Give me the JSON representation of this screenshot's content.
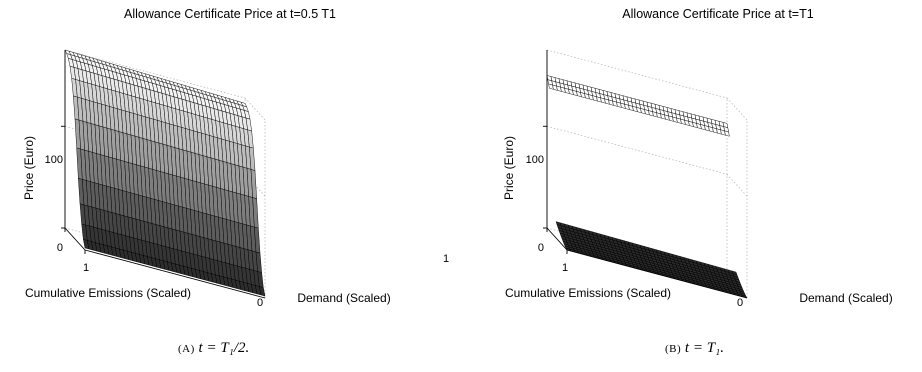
{
  "panels": [
    {
      "caption_tag": "(A)",
      "caption_math": "t = T₁/2."
    },
    {
      "caption_tag": "(B)",
      "caption_math": "t = T₁."
    }
  ],
  "chart_data": [
    {
      "type": "surface",
      "title": "Allowance Certificate Price at t=0.5 T1",
      "xlabel": "Demand (Scaled)",
      "ylabel": "Cumulative Emissions (Scaled)",
      "zlabel": "Price (Euro)",
      "x_ticks": [
        "0",
        "1"
      ],
      "y_ticks": [
        "1"
      ],
      "z_ticks": [
        "0",
        "100"
      ],
      "xlim": [
        0,
        1
      ],
      "ylim": [
        0,
        1
      ],
      "zlim": [
        0,
        175
      ],
      "grid": true,
      "x_count": 46,
      "y_count": 13,
      "profile_over_emissions": {
        "emissions": [
          0,
          0.1,
          0.2,
          0.3,
          0.4,
          0.5,
          0.6,
          0.7,
          0.8,
          0.9,
          1.0
        ],
        "price": [
          2,
          10,
          28,
          52,
          86,
          118,
          143,
          160,
          169,
          173,
          175
        ]
      },
      "demand_scaling": {
        "demand": [
          0,
          1
        ],
        "factor": [
          1.0,
          0.97
        ]
      }
    },
    {
      "type": "surface",
      "title": "Allowance Certificate Price at t=T1",
      "xlabel": "Demand (Scaled)",
      "ylabel": "Cumulative Emissions (Scaled)",
      "zlabel": "Price (Euro)",
      "x_ticks": [
        "0"
      ],
      "y_ticks": [
        "1"
      ],
      "z_ticks": [
        "0",
        "100"
      ],
      "xlim": [
        0,
        1
      ],
      "ylim": [
        0,
        1
      ],
      "zlim": [
        0,
        175
      ],
      "grid": true,
      "x_count": 46,
      "y_count": 13,
      "profile_over_emissions": {
        "emissions": [
          0,
          0.1,
          0.2,
          0.3,
          0.4,
          0.5,
          0.6,
          0.7,
          0.8,
          0.9,
          1.0
        ],
        "price": [
          0,
          2,
          5,
          8,
          12,
          16,
          null,
          null,
          null,
          140,
          148
        ]
      },
      "upper_sheet_emissions_range": [
        0.88,
        1.0
      ],
      "upper_sheet_price_range": [
        140,
        150
      ],
      "lower_sheet_peak_price": 16
    }
  ]
}
